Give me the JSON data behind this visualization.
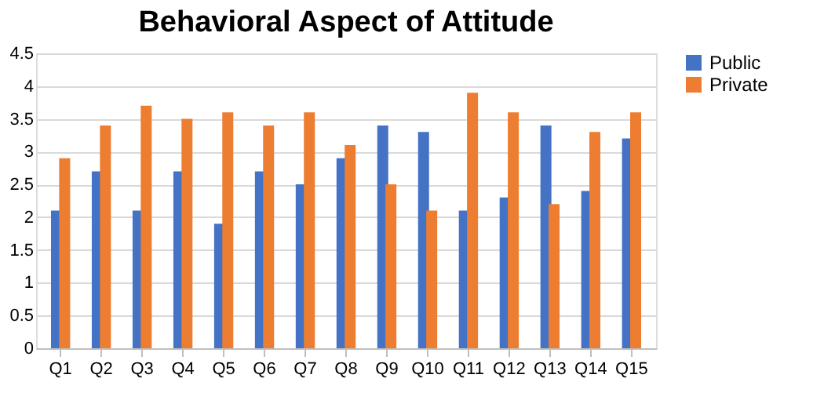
{
  "chart_data": {
    "type": "bar",
    "title": "Behavioral Aspect of Attitude",
    "categories": [
      "Q1",
      "Q2",
      "Q3",
      "Q4",
      "Q5",
      "Q6",
      "Q7",
      "Q8",
      "Q9",
      "Q10",
      "Q11",
      "Q12",
      "Q13",
      "Q14",
      "Q15"
    ],
    "series": [
      {
        "name": "Public",
        "color": "#4472c4",
        "values": [
          2.1,
          2.7,
          2.1,
          2.7,
          1.9,
          2.7,
          2.5,
          2.9,
          3.4,
          3.3,
          2.1,
          2.3,
          3.4,
          2.4,
          3.2
        ]
      },
      {
        "name": "Private",
        "color": "#ed7d31",
        "values": [
          2.9,
          3.4,
          3.7,
          3.5,
          3.6,
          3.4,
          3.6,
          3.1,
          2.5,
          2.1,
          3.9,
          3.6,
          2.2,
          3.3,
          3.6
        ]
      }
    ],
    "ylim": [
      0,
      4.5
    ],
    "yticks": [
      0,
      0.5,
      1,
      1.5,
      2,
      2.5,
      3,
      3.5,
      4,
      4.5
    ],
    "grid": "y",
    "legend": "right"
  }
}
